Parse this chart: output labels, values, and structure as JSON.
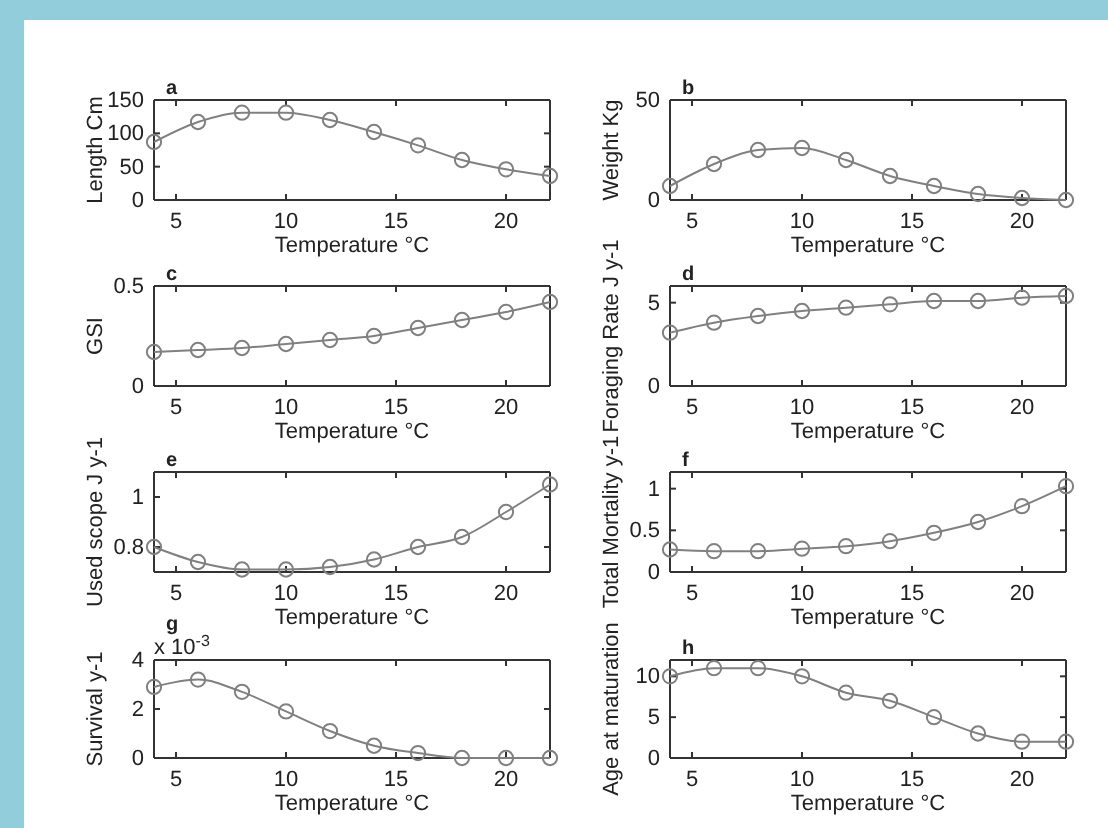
{
  "chart_data": [
    {
      "type": "line",
      "title": "a",
      "xlabel": "Temperature °C",
      "ylabel": "Length Cm",
      "marker": "circle",
      "color": "#808080",
      "x": [
        4,
        6,
        8,
        10,
        12,
        14,
        16,
        18,
        20,
        22
      ],
      "xlim": [
        4,
        22
      ],
      "xticks": [
        5,
        10,
        15,
        20
      ],
      "ylim": [
        0,
        150
      ],
      "yticks": [
        0,
        50,
        100,
        150
      ],
      "values": [
        87,
        117,
        131,
        131,
        120,
        102,
        82,
        60,
        46,
        36
      ]
    },
    {
      "type": "line",
      "title": "b",
      "xlabel": "Temperature °C",
      "ylabel": "Weight Kg",
      "marker": "circle",
      "color": "#808080",
      "x": [
        4,
        6,
        8,
        10,
        12,
        14,
        16,
        18,
        20,
        22
      ],
      "xlim": [
        4,
        22
      ],
      "xticks": [
        5,
        10,
        15,
        20
      ],
      "ylim": [
        0,
        50
      ],
      "yticks": [
        0,
        50
      ],
      "values": [
        7,
        18,
        25,
        26,
        20,
        12,
        7,
        3,
        1,
        0
      ]
    },
    {
      "type": "line",
      "title": "c",
      "xlabel": "Temperature °C",
      "ylabel": "GSI",
      "marker": "circle",
      "color": "#808080",
      "x": [
        4,
        6,
        8,
        10,
        12,
        14,
        16,
        18,
        20,
        22
      ],
      "xlim": [
        4,
        22
      ],
      "xticks": [
        5,
        10,
        15,
        20
      ],
      "ylim": [
        0,
        0.5
      ],
      "yticks": [
        0,
        0.5
      ],
      "values": [
        0.17,
        0.18,
        0.19,
        0.21,
        0.23,
        0.25,
        0.29,
        0.33,
        0.37,
        0.42
      ]
    },
    {
      "type": "line",
      "title": "d",
      "xlabel": "Temperature °C",
      "ylabel": "Foraging Rate J y-1",
      "marker": "circle",
      "color": "#808080",
      "x": [
        4,
        6,
        8,
        10,
        12,
        14,
        16,
        18,
        20,
        22
      ],
      "xlim": [
        4,
        22
      ],
      "xticks": [
        5,
        10,
        15,
        20
      ],
      "ylim": [
        0,
        6
      ],
      "yticks": [
        0,
        5
      ],
      "values": [
        3.2,
        3.8,
        4.2,
        4.5,
        4.7,
        4.9,
        5.1,
        5.1,
        5.3,
        5.4
      ]
    },
    {
      "type": "line",
      "title": "e",
      "xlabel": "Temperature °C",
      "ylabel": "Used scope J y-1",
      "marker": "circle",
      "color": "#808080",
      "x": [
        4,
        6,
        8,
        10,
        12,
        14,
        16,
        18,
        20,
        22
      ],
      "xlim": [
        4,
        22
      ],
      "xticks": [
        5,
        10,
        15,
        20
      ],
      "ylim": [
        0.7,
        1.1
      ],
      "yticks": [
        0.8,
        1
      ],
      "values": [
        0.8,
        0.74,
        0.71,
        0.71,
        0.72,
        0.75,
        0.8,
        0.84,
        0.94,
        1.05
      ]
    },
    {
      "type": "line",
      "title": "f",
      "xlabel": "Temperature °C",
      "ylabel": "Total Mortality y-1",
      "marker": "circle",
      "color": "#808080",
      "x": [
        4,
        6,
        8,
        10,
        12,
        14,
        16,
        18,
        20,
        22
      ],
      "xlim": [
        4,
        22
      ],
      "xticks": [
        5,
        10,
        15,
        20
      ],
      "ylim": [
        0,
        1.2
      ],
      "yticks": [
        0,
        0.5,
        1
      ],
      "values": [
        0.27,
        0.25,
        0.25,
        0.28,
        0.31,
        0.37,
        0.47,
        0.6,
        0.79,
        1.03
      ]
    },
    {
      "type": "line",
      "title": "g",
      "xlabel": "Temperature °C",
      "ylabel": "Survival y-1",
      "marker": "circle",
      "color": "#808080",
      "x": [
        4,
        6,
        8,
        10,
        12,
        14,
        16,
        18,
        20,
        22
      ],
      "xlim": [
        4,
        22
      ],
      "xticks": [
        5,
        10,
        15,
        20
      ],
      "ylim": [
        0,
        4
      ],
      "yticks": [
        0,
        2,
        4
      ],
      "annotations": [
        "x 10$^{-3}$"
      ],
      "values": [
        2.9,
        3.2,
        2.7,
        1.9,
        1.1,
        0.5,
        0.2,
        0,
        0,
        0
      ]
    },
    {
      "type": "line",
      "title": "h",
      "xlabel": "Temperature °C",
      "ylabel": "Age at maturation",
      "marker": "circle",
      "color": "#808080",
      "x": [
        4,
        6,
        8,
        10,
        12,
        14,
        16,
        18,
        20,
        22
      ],
      "xlim": [
        4,
        22
      ],
      "xticks": [
        5,
        10,
        15,
        20
      ],
      "ylim": [
        0,
        12
      ],
      "yticks": [
        0,
        5,
        10
      ],
      "values": [
        10,
        11,
        11,
        10,
        8,
        7,
        5,
        3,
        2,
        2
      ]
    }
  ]
}
